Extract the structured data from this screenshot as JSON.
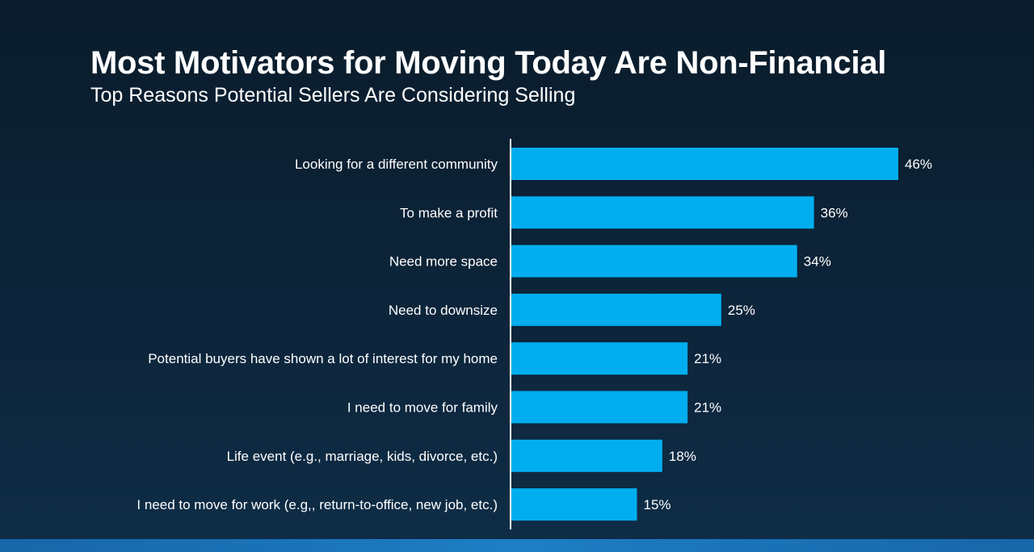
{
  "title": "Most Motivators for Moving Today Are Non-Financial",
  "subtitle": "Top Reasons Potential Sellers Are Considering Selling",
  "colors": {
    "bar": "#00aeef",
    "axis": "#ffffff",
    "text": "#ffffff"
  },
  "chart_data": {
    "type": "bar",
    "orientation": "horizontal",
    "categories": [
      "Looking for a different community",
      "To make a profit",
      "Need more space",
      "Need to downsize",
      "Potential buyers have shown a lot of interest for my home",
      "I need to move for family",
      "Life event (e.g., marriage, kids, divorce, etc.)",
      "I need to move for work (e.g,, return-to-office, new job, etc.)"
    ],
    "values": [
      46,
      36,
      34,
      25,
      21,
      21,
      18,
      15
    ],
    "data_labels": [
      "46%",
      "36%",
      "34%",
      "25%",
      "21%",
      "21%",
      "18%",
      "15%"
    ],
    "xlim": [
      0,
      46
    ],
    "grid": false,
    "legend": "none"
  }
}
